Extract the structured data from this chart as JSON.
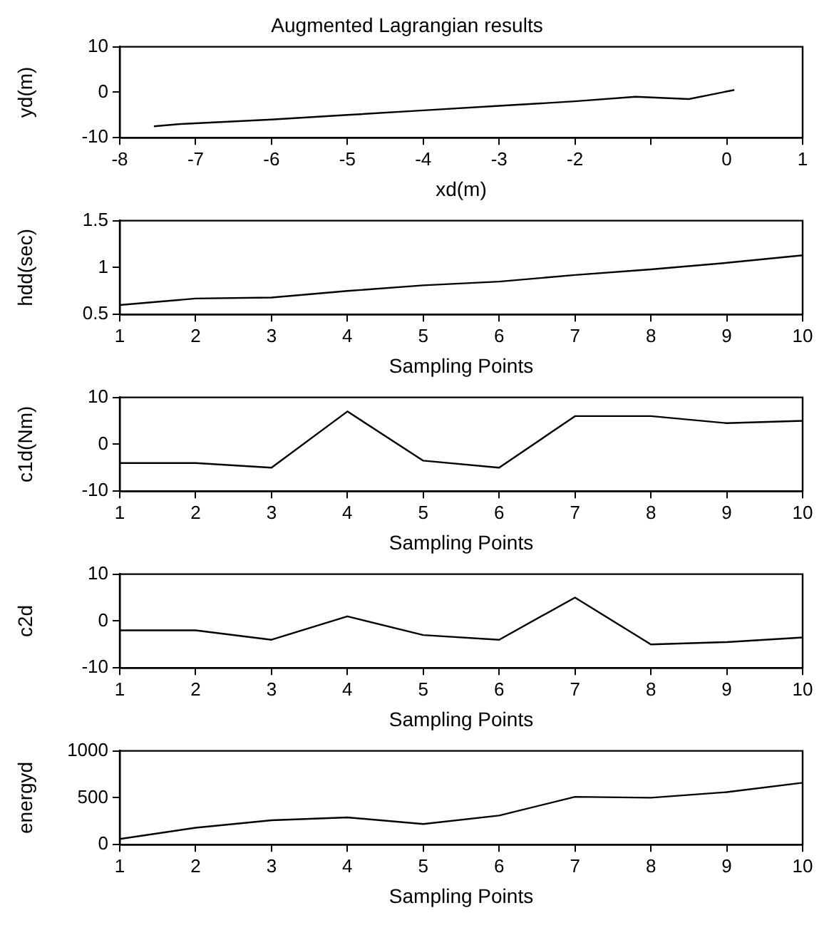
{
  "chart_data": [
    {
      "type": "line",
      "title": "Augmented Lagrangian results",
      "xlabel": "xd(m)",
      "ylabel": "yd(m)",
      "xlim": [
        -8,
        1
      ],
      "xticks": [
        -8,
        -7,
        -6,
        -5,
        -4,
        -3,
        -2,
        {
          "value": -1,
          "label": null
        },
        0,
        1
      ],
      "ylim": [
        -10,
        10
      ],
      "yticks": [
        -10,
        0,
        10
      ],
      "grid": false,
      "series": [
        {
          "color": "#000000",
          "x": [
            -7.55,
            -7.2,
            -6,
            -5,
            -4,
            -3,
            -2,
            -1.2,
            -0.5,
            -0.2,
            0.1
          ],
          "values": [
            -7.5,
            -7,
            -6,
            -5,
            -4,
            -3,
            -2,
            -1,
            -1.5,
            -0.5,
            0.5
          ]
        }
      ]
    },
    {
      "type": "line",
      "xlabel": "Sampling Points",
      "ylabel": "hdd(sec)",
      "x": [
        1,
        2,
        3,
        4,
        5,
        6,
        7,
        8,
        9,
        10
      ],
      "xlim": [
        1,
        10
      ],
      "xticks": [
        1,
        2,
        3,
        4,
        5,
        6,
        7,
        8,
        9,
        10
      ],
      "ylim": [
        0.5,
        1.5
      ],
      "yticks": [
        0.5,
        1,
        1.5
      ],
      "grid": false,
      "series": [
        {
          "color": "#000000",
          "values": [
            0.6,
            0.67,
            0.68,
            0.75,
            0.81,
            0.85,
            0.92,
            0.98,
            1.05,
            1.13
          ]
        }
      ]
    },
    {
      "type": "line",
      "xlabel": "Sampling Points",
      "ylabel": "c1d(Nm)",
      "x": [
        1,
        2,
        3,
        4,
        5,
        6,
        7,
        8,
        9,
        10
      ],
      "xlim": [
        1,
        10
      ],
      "xticks": [
        1,
        2,
        3,
        4,
        5,
        6,
        7,
        8,
        9,
        10
      ],
      "ylim": [
        -10,
        10
      ],
      "yticks": [
        -10,
        0,
        10
      ],
      "grid": false,
      "series": [
        {
          "color": "#000000",
          "values": [
            -4,
            -4,
            -5,
            7,
            -3.5,
            -5,
            6,
            6,
            4.5,
            5
          ]
        }
      ]
    },
    {
      "type": "line",
      "xlabel": "Sampling Points",
      "ylabel": "c2d",
      "x": [
        1,
        2,
        3,
        4,
        5,
        6,
        7,
        8,
        9,
        10
      ],
      "xlim": [
        1,
        10
      ],
      "xticks": [
        1,
        2,
        3,
        4,
        5,
        6,
        7,
        8,
        9,
        10
      ],
      "ylim": [
        -10,
        10
      ],
      "yticks": [
        -10,
        0,
        10
      ],
      "grid": false,
      "series": [
        {
          "color": "#000000",
          "values": [
            -2,
            -2,
            -4,
            1,
            -3,
            -4,
            5,
            -5,
            -4.5,
            -3.5
          ]
        }
      ]
    },
    {
      "type": "line",
      "xlabel": "Sampling Points",
      "ylabel": "energyd",
      "x": [
        1,
        2,
        3,
        4,
        5,
        6,
        7,
        8,
        9,
        10
      ],
      "xlim": [
        1,
        10
      ],
      "xticks": [
        1,
        2,
        3,
        4,
        5,
        6,
        7,
        8,
        9,
        10
      ],
      "ylim": [
        0,
        1000
      ],
      "yticks": [
        0,
        500,
        1000
      ],
      "grid": false,
      "series": [
        {
          "color": "#000000",
          "values": [
            60,
            180,
            260,
            290,
            220,
            310,
            510,
            500,
            560,
            660
          ]
        }
      ]
    }
  ]
}
